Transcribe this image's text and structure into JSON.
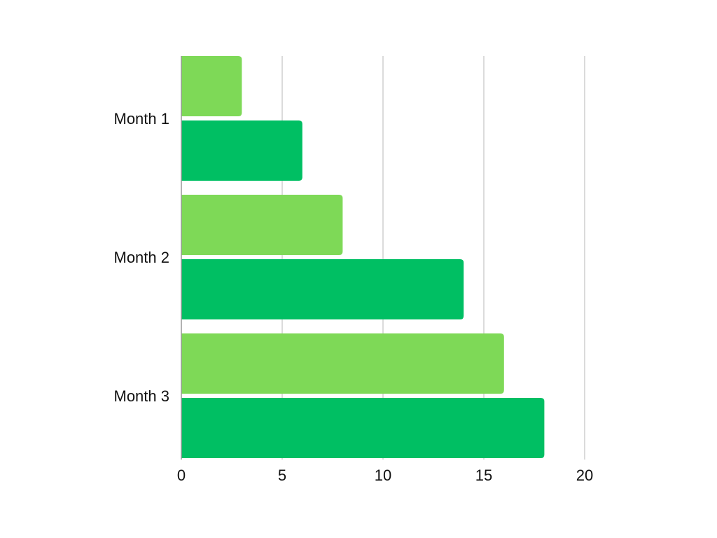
{
  "chart_data": {
    "type": "bar",
    "orientation": "horizontal",
    "categories": [
      "Month 1",
      "Month 2",
      "Month 3"
    ],
    "series": [
      {
        "values": [
          3,
          8,
          16
        ],
        "color": "#7ED957"
      },
      {
        "values": [
          6,
          14,
          18
        ],
        "color": "#00BF63"
      }
    ],
    "xlim": [
      0,
      20
    ],
    "xticks": [
      "0",
      "5",
      "10",
      "15",
      "20"
    ],
    "grid": "vertical",
    "legend": "none",
    "title": "",
    "xlabel": "",
    "ylabel": ""
  }
}
